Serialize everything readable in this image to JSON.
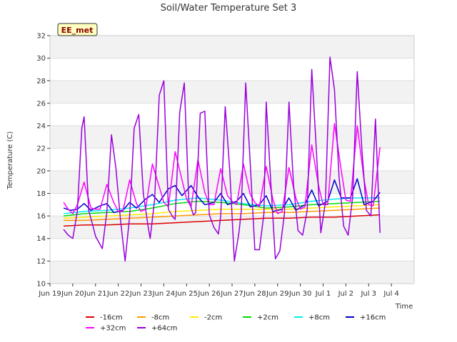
{
  "chart_data": {
    "type": "line",
    "title": "Soil/Water Temperature Set 3",
    "xlabel": "Time",
    "ylabel": "Temperature (C)",
    "ylim": [
      10,
      32
    ],
    "yticks": [
      10,
      12,
      14,
      16,
      18,
      20,
      22,
      24,
      26,
      28,
      30,
      32
    ],
    "xlim": [
      0,
      16
    ],
    "xticks": [
      {
        "pos": 0,
        "label": "Jun 19"
      },
      {
        "pos": 1,
        "label": "Jun 20"
      },
      {
        "pos": 2,
        "label": "Jun 21"
      },
      {
        "pos": 3,
        "label": "Jun 22"
      },
      {
        "pos": 4,
        "label": "Jun 23"
      },
      {
        "pos": 5,
        "label": "Jun 24"
      },
      {
        "pos": 6,
        "label": "Jun 25"
      },
      {
        "pos": 7,
        "label": "Jun 26"
      },
      {
        "pos": 8,
        "label": "Jun 27"
      },
      {
        "pos": 9,
        "label": "Jun 28"
      },
      {
        "pos": 10,
        "label": "Jun 29"
      },
      {
        "pos": 11,
        "label": "Jun 30"
      },
      {
        "pos": 12,
        "label": "Jul 1"
      },
      {
        "pos": 13,
        "label": "Jul 2"
      },
      {
        "pos": 14,
        "label": "Jul 3"
      },
      {
        "pos": 15,
        "label": "Jul 4"
      }
    ],
    "grid": true,
    "legend_placement": "bottom",
    "badge": "EE_met",
    "series": [
      {
        "name": "-16cm",
        "color": "#dd0000",
        "x": [
          0.6,
          1.5,
          2.5,
          3.5,
          4.5,
          5.5,
          6.5,
          7.5,
          8.5,
          9.5,
          10.5,
          11.5,
          12.5,
          13.5,
          14.5
        ],
        "y": [
          15.1,
          15.2,
          15.2,
          15.3,
          15.3,
          15.4,
          15.5,
          15.6,
          15.7,
          15.8,
          15.8,
          15.9,
          15.9,
          16.0,
          16.1
        ]
      },
      {
        "name": "-8cm",
        "color": "#ff9900",
        "x": [
          0.6,
          1.5,
          2.5,
          3.5,
          4.5,
          5.5,
          6.5,
          7.5,
          8.5,
          9.5,
          10.5,
          11.5,
          12.5,
          13.5,
          14.5
        ],
        "y": [
          15.6,
          15.6,
          15.7,
          15.8,
          15.9,
          16.0,
          16.1,
          16.2,
          16.2,
          16.3,
          16.3,
          16.4,
          16.5,
          16.6,
          16.7
        ]
      },
      {
        "name": "-2cm",
        "color": "#ffee00",
        "x": [
          0.6,
          1.5,
          2.5,
          3.5,
          4.5,
          5.5,
          6.5,
          7.5,
          8.5,
          9.5,
          10.5,
          11.5,
          12.5,
          13.5,
          14.5
        ],
        "y": [
          15.8,
          15.9,
          16.0,
          16.1,
          16.2,
          16.4,
          16.5,
          16.6,
          16.6,
          16.6,
          16.6,
          16.7,
          16.8,
          16.9,
          17.0
        ]
      },
      {
        "name": "+2cm",
        "color": "#00dd00",
        "x": [
          0.6,
          1.5,
          2.5,
          3.5,
          4.5,
          5.5,
          6.5,
          7.5,
          8.5,
          9.5,
          10.5,
          11.5,
          12.5,
          13.5,
          14.5
        ],
        "y": [
          16.0,
          16.2,
          16.3,
          16.4,
          16.7,
          17.1,
          17.3,
          17.2,
          17.0,
          16.7,
          16.8,
          17.0,
          17.1,
          17.2,
          17.3
        ]
      },
      {
        "name": "+8cm",
        "color": "#00eeee",
        "x": [
          0.6,
          1.5,
          2.5,
          3.5,
          4.5,
          5.5,
          6.5,
          7.5,
          8.5,
          9.5,
          10.5,
          11.5,
          12.5,
          13.5,
          14.5
        ],
        "y": [
          16.2,
          16.4,
          16.5,
          16.7,
          17.0,
          17.4,
          17.6,
          17.4,
          17.1,
          16.9,
          17.0,
          17.3,
          17.5,
          17.6,
          17.6
        ]
      },
      {
        "name": "+16cm",
        "color": "#0000cc",
        "x": [
          0.6,
          0.9,
          1.2,
          1.5,
          1.8,
          2.2,
          2.5,
          2.8,
          3.2,
          3.5,
          3.8,
          4.2,
          4.5,
          4.8,
          5.2,
          5.5,
          5.8,
          6.2,
          6.5,
          6.8,
          7.2,
          7.5,
          7.8,
          8.2,
          8.5,
          8.8,
          9.2,
          9.5,
          9.8,
          10.2,
          10.5,
          10.8,
          11.2,
          11.5,
          11.8,
          12.2,
          12.5,
          12.8,
          13.2,
          13.5,
          13.8,
          14.2,
          14.5
        ],
        "y": [
          16.7,
          16.5,
          16.6,
          17.1,
          16.5,
          16.9,
          17.1,
          16.3,
          16.5,
          17.2,
          16.7,
          17.5,
          17.9,
          17.2,
          18.4,
          18.7,
          17.8,
          18.7,
          17.7,
          17.0,
          17.2,
          18.0,
          17.0,
          17.3,
          18.0,
          16.8,
          17.0,
          17.8,
          16.4,
          16.6,
          17.6,
          16.5,
          17.0,
          18.3,
          16.9,
          17.3,
          19.2,
          17.6,
          17.6,
          19.3,
          17.0,
          17.3,
          18.1
        ]
      },
      {
        "name": "+32cm",
        "color": "#ff00ff",
        "x": [
          0.6,
          0.8,
          1.0,
          1.2,
          1.5,
          1.8,
          2.0,
          2.2,
          2.5,
          2.8,
          3.0,
          3.2,
          3.5,
          3.8,
          4.0,
          4.2,
          4.5,
          4.8,
          5.0,
          5.2,
          5.5,
          5.8,
          6.0,
          6.2,
          6.5,
          6.8,
          7.0,
          7.2,
          7.5,
          7.8,
          8.0,
          8.2,
          8.5,
          8.8,
          9.0,
          9.2,
          9.5,
          9.8,
          10.0,
          10.2,
          10.5,
          10.8,
          11.0,
          11.2,
          11.5,
          11.8,
          12.0,
          12.2,
          12.5,
          12.8,
          13.0,
          13.2,
          13.5,
          13.8,
          14.0,
          14.2,
          14.5
        ],
        "y": [
          17.2,
          16.6,
          16.2,
          17.0,
          19.0,
          16.7,
          16.6,
          16.6,
          18.8,
          17.2,
          16.4,
          16.4,
          19.2,
          17.1,
          16.4,
          16.6,
          20.6,
          18.6,
          17.2,
          16.8,
          21.7,
          19.2,
          17.5,
          16.8,
          21.0,
          18.1,
          17.0,
          17.0,
          20.2,
          17.8,
          17.3,
          17.0,
          20.6,
          17.9,
          17.2,
          16.8,
          20.4,
          17.4,
          16.2,
          16.4,
          20.3,
          17.6,
          16.6,
          16.8,
          22.3,
          18.7,
          17.0,
          17.0,
          24.2,
          20.0,
          17.4,
          17.3,
          24.0,
          19.2,
          17.0,
          16.9,
          22.1
        ]
      },
      {
        "name": "+64cm",
        "color": "#9900dd",
        "x": [
          0.6,
          0.8,
          1.0,
          1.2,
          1.4,
          1.5,
          1.7,
          1.9,
          2.0,
          2.3,
          2.5,
          2.7,
          2.9,
          3.1,
          3.3,
          3.5,
          3.7,
          3.9,
          4.1,
          4.3,
          4.4,
          4.6,
          4.8,
          5.0,
          5.2,
          5.4,
          5.5,
          5.7,
          5.9,
          6.1,
          6.3,
          6.4,
          6.6,
          6.8,
          7.0,
          7.2,
          7.4,
          7.5,
          7.7,
          7.9,
          8.1,
          8.3,
          8.4,
          8.6,
          8.8,
          9.0,
          9.2,
          9.4,
          9.5,
          9.7,
          9.9,
          10.1,
          10.3,
          10.5,
          10.7,
          10.9,
          11.1,
          11.3,
          11.5,
          11.7,
          11.9,
          12.1,
          12.3,
          12.5,
          12.7,
          12.9,
          13.1,
          13.3,
          13.5,
          13.7,
          13.9,
          14.1,
          14.3,
          14.5
        ],
        "y": [
          14.8,
          14.3,
          14.0,
          16.4,
          23.8,
          24.8,
          16.5,
          15.0,
          14.2,
          13.1,
          16.4,
          23.2,
          20.2,
          15.6,
          12.0,
          16.0,
          23.8,
          25.0,
          18.0,
          15.2,
          14.0,
          17.5,
          26.7,
          28.0,
          16.6,
          15.9,
          15.7,
          25.2,
          27.8,
          17.4,
          16.1,
          16.3,
          25.1,
          25.3,
          16.1,
          15.0,
          14.4,
          16.0,
          25.7,
          20.0,
          12.0,
          14.5,
          16.4,
          27.8,
          20.6,
          13.0,
          13.0,
          16.2,
          26.1,
          19.0,
          12.2,
          12.9,
          16.2,
          26.1,
          18.7,
          14.7,
          14.3,
          16.5,
          29.0,
          22.0,
          14.5,
          17.2,
          30.1,
          27.2,
          19.5,
          15.1,
          14.3,
          17.7,
          28.8,
          22.0,
          16.5,
          16.0,
          24.6,
          14.5
        ]
      }
    ]
  }
}
